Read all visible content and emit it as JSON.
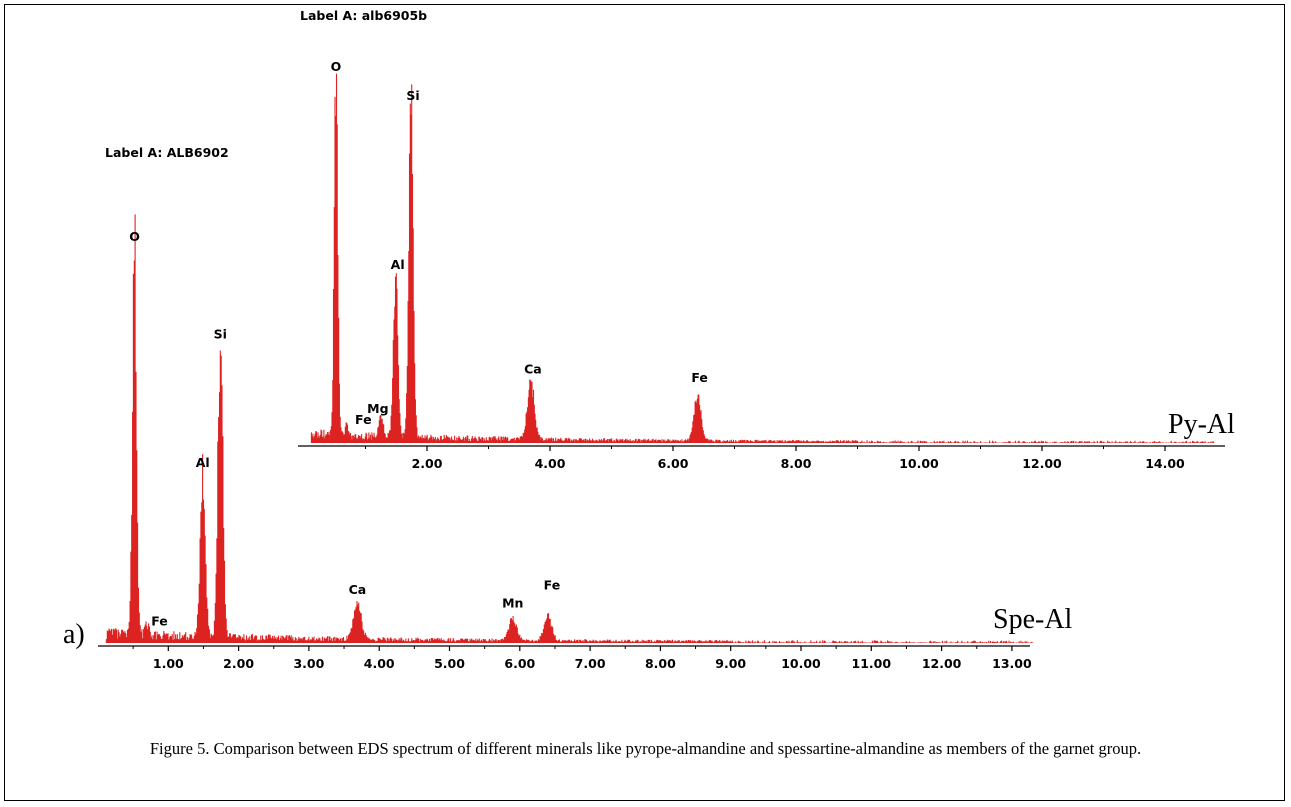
{
  "figure": {
    "panel_label": "a)",
    "caption": "Figure 5. Comparison between EDS spectrum of different minerals like pyrope-almandine and spessartine-almandine as members of the garnet group."
  },
  "colors": {
    "spectrum": "#dd2222",
    "axis": "#000000"
  },
  "chart_data": [
    {
      "type": "area",
      "sample_label": "Label A: ALB6902",
      "series_name": "Spe-Al",
      "xlim": [
        0,
        14.3
      ],
      "x_ticks": [
        "1.00",
        "2.00",
        "3.00",
        "4.00",
        "5.00",
        "6.00",
        "7.00",
        "8.00",
        "9.00",
        "10.00",
        "11.00",
        "12.00",
        "13.00"
      ],
      "x_tick_values": [
        1,
        2,
        3,
        4,
        5,
        6,
        7,
        8,
        9,
        10,
        11,
        12,
        13
      ],
      "peaks": [
        {
          "element": "O",
          "x": 0.52,
          "y": 100
        },
        {
          "element": "Fe",
          "x": 0.7,
          "y": 3
        },
        {
          "element": "Al",
          "x": 1.49,
          "y": 42
        },
        {
          "element": "Si",
          "x": 1.74,
          "y": 75
        },
        {
          "element": "Ca",
          "x": 3.69,
          "y": 9
        },
        {
          "element": "Mn",
          "x": 5.9,
          "y": 5.5
        },
        {
          "element": "Fe",
          "x": 6.4,
          "y": 6
        }
      ]
    },
    {
      "type": "area",
      "sample_label": "Label A: alb6905b",
      "series_name": "Py-Al",
      "xlim": [
        0,
        15.4
      ],
      "x_ticks": [
        "2.00",
        "4.00",
        "6.00",
        "8.00",
        "10.00",
        "12.00",
        "14.00"
      ],
      "x_tick_values": [
        2,
        4,
        6,
        8,
        10,
        12,
        14
      ],
      "peaks": [
        {
          "element": "O",
          "x": 0.52,
          "y": 100
        },
        {
          "element": "Fe",
          "x": 0.7,
          "y": 3
        },
        {
          "element": "Mg",
          "x": 1.25,
          "y": 5.5
        },
        {
          "element": "Al",
          "x": 1.49,
          "y": 45
        },
        {
          "element": "Si",
          "x": 1.74,
          "y": 92
        },
        {
          "element": "Ca",
          "x": 3.69,
          "y": 16
        },
        {
          "element": "Fe",
          "x": 6.4,
          "y": 13
        }
      ]
    }
  ]
}
